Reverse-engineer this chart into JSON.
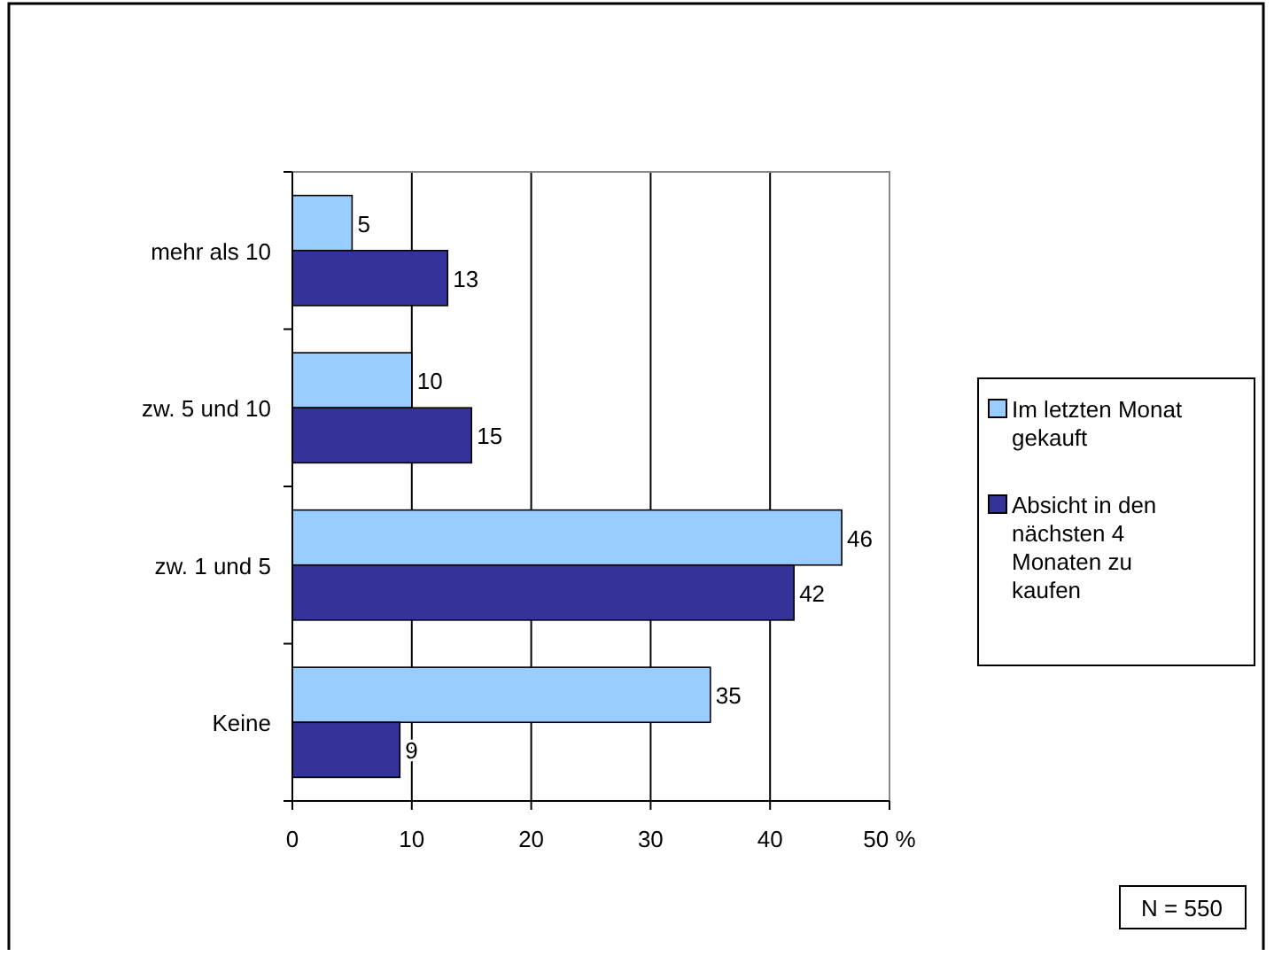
{
  "chart_data": {
    "type": "bar",
    "orientation": "horizontal",
    "categories": [
      "mehr als 10",
      "zw. 5 und 10",
      "zw. 1 und 5",
      "Keine"
    ],
    "series": [
      {
        "name": "Im letzten Monat gekauft",
        "color": "#99ccff",
        "values": [
          5,
          10,
          46,
          35
        ]
      },
      {
        "name": "Absicht in den nächsten 4 Monaten zu kaufen",
        "color": "#333399",
        "values": [
          13,
          15,
          42,
          9
        ]
      }
    ],
    "xlim": [
      0,
      50
    ],
    "xticks": [
      0,
      10,
      20,
      30,
      40,
      {
        "value": 50,
        "label": "50 %"
      }
    ],
    "grid": "x",
    "legend": "right",
    "data_labels": true,
    "annotations": [
      "N = 550"
    ]
  }
}
